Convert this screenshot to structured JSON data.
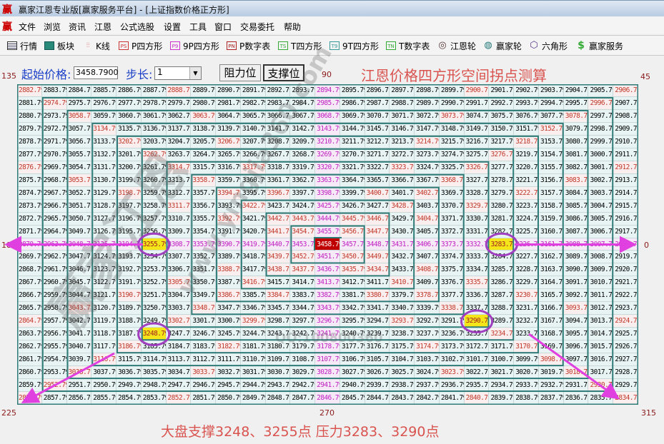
{
  "window": {
    "logo": "赢",
    "title": "赢家江恩专业版[赢家服务平台] - [上证指数价格正方形]"
  },
  "menu": [
    "文件",
    "浏览",
    "资讯",
    "江恩",
    "公式选股",
    "设置",
    "工具",
    "窗口",
    "交易委托",
    "帮助"
  ],
  "toolbar": [
    {
      "icon": "table-icon",
      "badge": "",
      "label": "行情"
    },
    {
      "icon": "blocks-icon",
      "badge": "",
      "label": "板块"
    },
    {
      "icon": "candlestick-icon",
      "badge": "",
      "label": "K线"
    },
    {
      "icon": "ps-icon",
      "badge": "PS",
      "label": "P四方形"
    },
    {
      "icon": "p9-icon",
      "badge": "P9",
      "label": "9P四方形"
    },
    {
      "icon": "pn-icon",
      "badge": "PN",
      "label": "P数字表"
    },
    {
      "icon": "ts-icon",
      "badge": "TS",
      "label": "T四方形"
    },
    {
      "icon": "t9-icon",
      "badge": "T9",
      "label": "9T四方形"
    },
    {
      "icon": "tn-icon",
      "badge": "TN",
      "label": "T数字表"
    },
    {
      "icon": "gann-wheel-icon",
      "badge": "◎",
      "label": "江恩轮"
    },
    {
      "icon": "winner-wheel-icon",
      "badge": "◍",
      "label": "赢家轮"
    },
    {
      "icon": "hexagon-icon",
      "badge": "⬡",
      "label": "六角形"
    },
    {
      "icon": "dollar-icon",
      "badge": "$",
      "label": "赢家服务"
    }
  ],
  "controls": {
    "start_price_label": "起始价格:",
    "start_price": "3458.7900",
    "step_label": "步长:",
    "step": "1",
    "resistance_button": "阻力位",
    "support_button": "支撑位"
  },
  "banner": "江恩价格四方形空间拐点测算",
  "angles": {
    "a135": "135",
    "a90": "90",
    "a45": "45",
    "a180": "180",
    "a0": "0",
    "a225": "225",
    "a270": "270",
    "a315": "315"
  },
  "grid": {
    "center": 3458.79,
    "step": 1,
    "size": 25,
    "highlighted": [
      3248.79,
      3255.79,
      3283.79,
      3290.79
    ]
  },
  "note": "大盘支撑3248、3255点    压力3283、3290点",
  "watermark": [
    "赢家江恩",
    "www.yingjia360.com",
    "QQ:100800360"
  ],
  "colors": {
    "ring_border": "#2e7b78",
    "diagonal_text": "#c0392b",
    "cross_text": "#c020c0",
    "center_bg": "#c00000",
    "highlight_bg": "#f5e61a",
    "arrow": "#e040e0",
    "ellipse": "#a040c0"
  }
}
